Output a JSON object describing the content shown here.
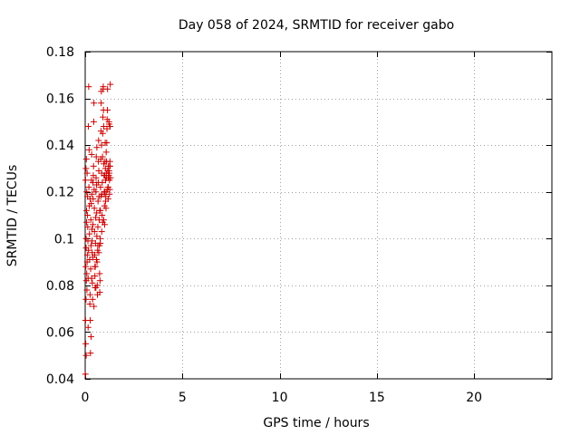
{
  "chart_data": {
    "type": "scatter",
    "title": "Day 058 of 2024, SRMTID for receiver gabo",
    "xlabel": "GPS time / hours",
    "ylabel": "SRMTID / TECUs",
    "xlim": [
      0,
      24
    ],
    "ylim": [
      0.04,
      0.18
    ],
    "xticks": [
      0,
      5,
      10,
      15,
      20
    ],
    "xtick_labels": [
      "0",
      "5",
      "10",
      "15",
      "20"
    ],
    "yticks": [
      0.04,
      0.06,
      0.08,
      0.1,
      0.12,
      0.14,
      0.16,
      0.18
    ],
    "ytick_labels": [
      "0.04",
      "0.06",
      "0.08",
      "0.1",
      "0.12",
      "0.14",
      "0.16",
      "0.18"
    ],
    "grid": true,
    "marker": "plus",
    "color": "#cc0000",
    "series": [
      {
        "x": [
          0.01,
          0.03,
          0.05,
          0.02,
          0.04,
          0.06,
          0.03,
          0.05,
          0.07,
          0.02,
          0.04,
          0.06,
          0.08,
          0.05,
          0.09,
          0.1,
          0.12,
          0.08,
          0.11,
          0.13,
          0.07,
          0.1,
          0.12,
          0.14,
          0.15,
          0.17,
          0.16,
          0.18,
          0.2,
          0.19,
          0.21,
          0.22,
          0.23,
          0.25,
          0.24,
          0.26,
          0.27,
          0.28,
          0.3,
          0.29,
          0.31,
          0.32,
          0.33,
          0.34,
          0.35,
          0.36,
          0.37,
          0.38,
          0.39,
          0.4,
          0.41,
          0.42,
          0.43,
          0.44,
          0.45,
          0.46,
          0.47,
          0.48,
          0.49,
          0.5,
          0.51,
          0.52,
          0.53,
          0.54,
          0.55,
          0.56,
          0.57,
          0.58,
          0.59,
          0.6,
          0.61,
          0.62,
          0.63,
          0.64,
          0.65,
          0.66,
          0.67,
          0.68,
          0.69,
          0.7,
          0.71,
          0.72,
          0.73,
          0.74,
          0.75,
          0.76,
          0.77,
          0.78,
          0.79,
          0.8,
          0.81,
          0.82,
          0.83,
          0.84,
          0.85,
          0.86,
          0.87,
          0.88,
          0.89,
          0.9,
          0.91,
          0.92,
          0.93,
          0.94,
          0.95,
          0.96,
          0.97,
          0.98,
          0.99,
          1.0,
          1.01,
          1.02,
          1.03,
          1.04,
          1.05,
          1.06,
          1.07,
          1.08,
          1.09,
          1.1,
          1.11,
          1.12,
          1.13,
          1.14,
          1.15,
          1.16,
          1.17,
          1.18,
          1.19,
          1.2,
          1.21,
          1.22,
          1.23,
          1.24,
          1.25,
          1.26,
          1.27,
          1.28,
          1.29,
          1.3,
          0.3,
          0.45,
          0.55,
          0.65,
          0.75,
          0.85,
          0.95,
          1.05,
          1.15,
          1.25,
          0.35,
          0.5,
          0.7,
          0.9,
          1.1,
          1.2,
          0.25,
          0.4,
          0.6,
          0.8,
          1.0,
          1.18,
          1.28,
          0.15,
          0.33,
          0.58,
          0.78,
          0.98,
          1.08,
          1.22
        ],
        "y": [
          0.042,
          0.055,
          0.05,
          0.065,
          0.074,
          0.082,
          0.088,
          0.1,
          0.107,
          0.125,
          0.13,
          0.134,
          0.12,
          0.096,
          0.078,
          0.09,
          0.11,
          0.085,
          0.093,
          0.105,
          0.112,
          0.128,
          0.118,
          0.099,
          0.083,
          0.095,
          0.148,
          0.165,
          0.138,
          0.122,
          0.114,
          0.102,
          0.091,
          0.076,
          0.072,
          0.065,
          0.051,
          0.087,
          0.097,
          0.108,
          0.115,
          0.125,
          0.136,
          0.119,
          0.104,
          0.094,
          0.081,
          0.074,
          0.092,
          0.106,
          0.117,
          0.127,
          0.131,
          0.15,
          0.158,
          0.121,
          0.113,
          0.103,
          0.093,
          0.084,
          0.079,
          0.088,
          0.098,
          0.109,
          0.12,
          0.126,
          0.135,
          0.123,
          0.111,
          0.101,
          0.09,
          0.08,
          0.076,
          0.095,
          0.105,
          0.116,
          0.124,
          0.133,
          0.142,
          0.129,
          0.118,
          0.108,
          0.097,
          0.085,
          0.077,
          0.082,
          0.1,
          0.112,
          0.122,
          0.134,
          0.146,
          0.158,
          0.163,
          0.14,
          0.128,
          0.119,
          0.11,
          0.124,
          0.135,
          0.145,
          0.152,
          0.164,
          0.165,
          0.155,
          0.148,
          0.132,
          0.127,
          0.12,
          0.114,
          0.12,
          0.127,
          0.133,
          0.141,
          0.13,
          0.125,
          0.118,
          0.113,
          0.12,
          0.128,
          0.133,
          0.141,
          0.147,
          0.151,
          0.155,
          0.164,
          0.129,
          0.122,
          0.117,
          0.126,
          0.131,
          0.127,
          0.15,
          0.149,
          0.128,
          0.125,
          0.121,
          0.133,
          0.148,
          0.166,
          0.126,
          0.058,
          0.071,
          0.079,
          0.097,
          0.112,
          0.103,
          0.108,
          0.116,
          0.121,
          0.119,
          0.099,
          0.088,
          0.094,
          0.107,
          0.126,
          0.131,
          0.117,
          0.124,
          0.139,
          0.118,
          0.106,
          0.122,
          0.131,
          0.062,
          0.083,
          0.091,
          0.098,
          0.119,
          0.137,
          0.129
        ]
      }
    ]
  }
}
